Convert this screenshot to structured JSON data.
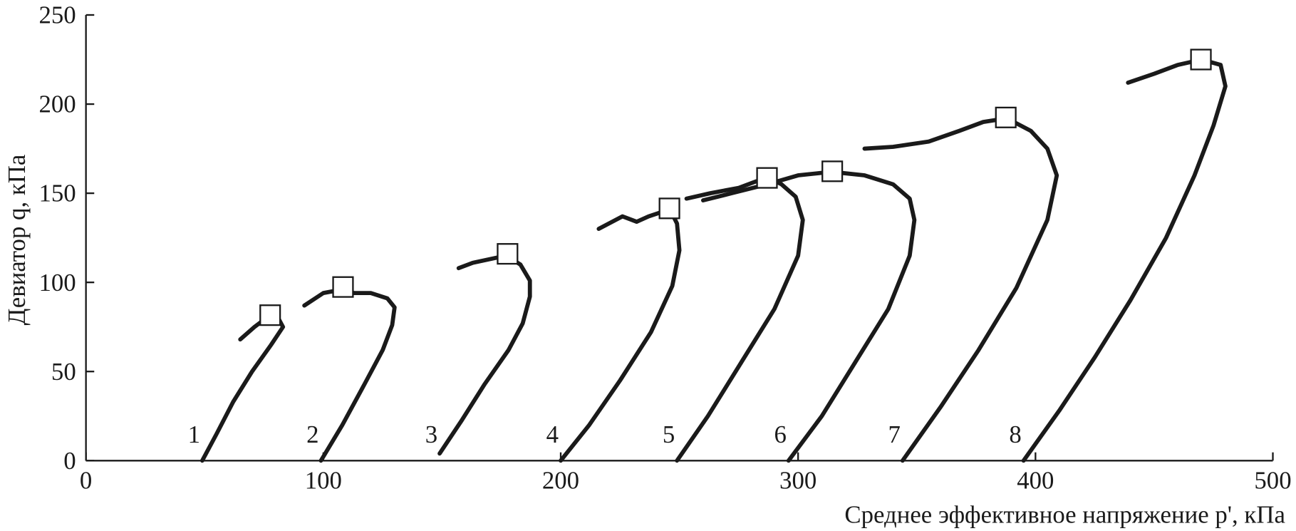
{
  "chart_data": {
    "type": "line",
    "x_label": "Среднее эффективное напряжение p', кПа",
    "y_label": "Девиатор q, кПа",
    "xlim": [
      0,
      500
    ],
    "xticks": [
      0,
      100,
      200,
      300,
      400,
      500
    ],
    "ylim": [
      0,
      250
    ],
    "yticks": [
      0,
      50,
      100,
      150,
      200,
      250
    ],
    "color": "#1a1a1a",
    "series": [
      {
        "name": "1",
        "x": [
          49,
          55,
          62,
          70,
          78,
          83,
          81,
          77,
          71,
          65
        ],
        "values": [
          0,
          15,
          33,
          50,
          65,
          75,
          80,
          81,
          75,
          68
        ]
      },
      {
        "name": "2",
        "x": [
          99,
          108,
          117,
          125,
          129,
          130,
          127,
          120,
          113,
          108,
          100,
          92
        ],
        "values": [
          0,
          20,
          42,
          62,
          76,
          86,
          91,
          94,
          94,
          96,
          94,
          87
        ]
      },
      {
        "name": "3",
        "x": [
          149,
          158,
          168,
          178,
          184,
          187,
          187,
          183,
          177,
          170,
          163,
          157
        ],
        "values": [
          4,
          22,
          43,
          62,
          77,
          92,
          101,
          110,
          115,
          113,
          111,
          108
        ]
      },
      {
        "name": "4",
        "x": [
          200,
          212,
          225,
          238,
          247,
          250,
          249,
          246,
          237,
          232,
          226,
          216
        ],
        "values": [
          0,
          20,
          45,
          72,
          98,
          118,
          133,
          141,
          137,
          134,
          137,
          130
        ]
      },
      {
        "name": "5",
        "x": [
          249,
          262,
          276,
          290,
          300,
          302,
          299,
          293,
          287,
          275,
          263,
          253
        ],
        "values": [
          0,
          25,
          55,
          85,
          115,
          135,
          148,
          155,
          159,
          153,
          150,
          147
        ]
      },
      {
        "name": "6",
        "x": [
          296,
          310,
          324,
          338,
          347,
          349,
          347,
          340,
          328,
          314,
          300,
          287,
          272,
          260
        ],
        "values": [
          0,
          25,
          55,
          85,
          115,
          135,
          147,
          155,
          160,
          162,
          160,
          155,
          150,
          146
        ]
      },
      {
        "name": "7",
        "x": [
          344,
          360,
          376,
          392,
          405,
          409,
          405,
          398,
          388,
          378,
          368,
          355,
          340,
          328
        ],
        "values": [
          0,
          30,
          62,
          97,
          135,
          160,
          175,
          185,
          192,
          190,
          185,
          179,
          176,
          175
        ]
      },
      {
        "name": "8",
        "x": [
          395,
          410,
          425,
          440,
          455,
          467,
          475,
          480,
          478,
          470,
          460,
          450,
          439
        ],
        "values": [
          0,
          28,
          58,
          90,
          125,
          160,
          188,
          210,
          222,
          225,
          222,
          217,
          212
        ]
      }
    ],
    "peaks": {
      "x": [
        77.6,
        108.3,
        177.6,
        245.8,
        286.9,
        314.4,
        387.5,
        469.7
      ],
      "y": [
        81.6,
        97.4,
        116,
        141.5,
        158.6,
        162.3,
        192.5,
        225
      ]
    }
  }
}
